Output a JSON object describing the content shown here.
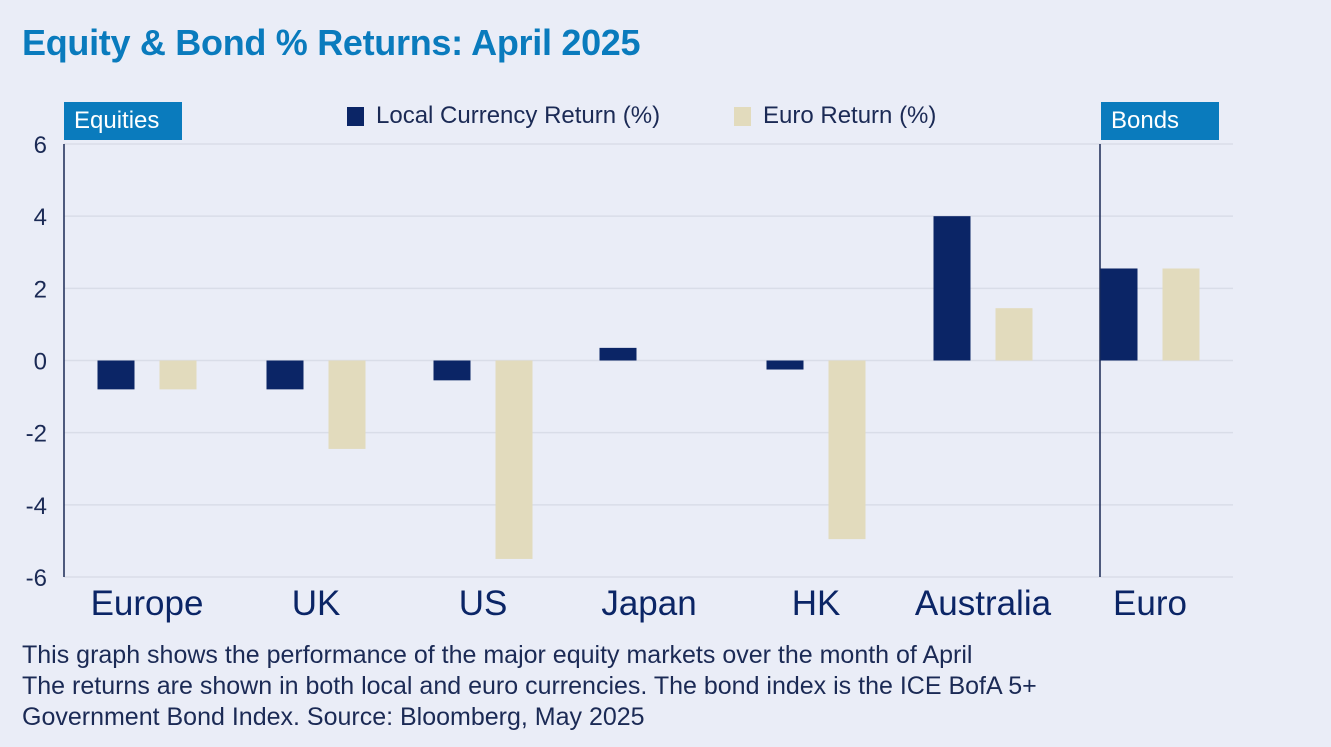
{
  "title": "Equity & Bond % Returns: April 2025",
  "labels": {
    "equities": "Equities",
    "bonds": "Bonds"
  },
  "colors": {
    "local": "#0b2566",
    "euro": "#e2dbbd",
    "accent": "#0a7bbd",
    "background": "#eaedf7",
    "gridline": "#d9dde8"
  },
  "footnote": {
    "line1": "This graph shows the performance of the major equity markets over the month of April",
    "line2": "The returns are shown in both local and euro currencies. The bond index is the ICE BofA 5+",
    "line3": "Government Bond Index. Source: Bloomberg, May 2025"
  },
  "chart_data": {
    "type": "bar",
    "title": "Equity & Bond % Returns: April 2025",
    "categories": [
      "Europe",
      "UK",
      "US",
      "Japan",
      "HK",
      "Australia",
      "Euro"
    ],
    "series": [
      {
        "name": "Local Currency Return (%)",
        "values": [
          -0.8,
          -0.8,
          -0.55,
          0.35,
          -0.25,
          4.0,
          2.55
        ]
      },
      {
        "name": "Euro Return (%)",
        "values": [
          -0.8,
          -2.45,
          -5.5,
          0.0,
          -4.95,
          1.45,
          2.55
        ]
      }
    ],
    "ylim": [
      -6,
      6
    ],
    "yticks": [
      "6",
      "4",
      "2",
      "0",
      "-2",
      "-4",
      "-6"
    ],
    "ytick_values": [
      6,
      4,
      2,
      0,
      -2,
      -4,
      -6
    ],
    "grid": true,
    "legend_position": "top-center"
  }
}
